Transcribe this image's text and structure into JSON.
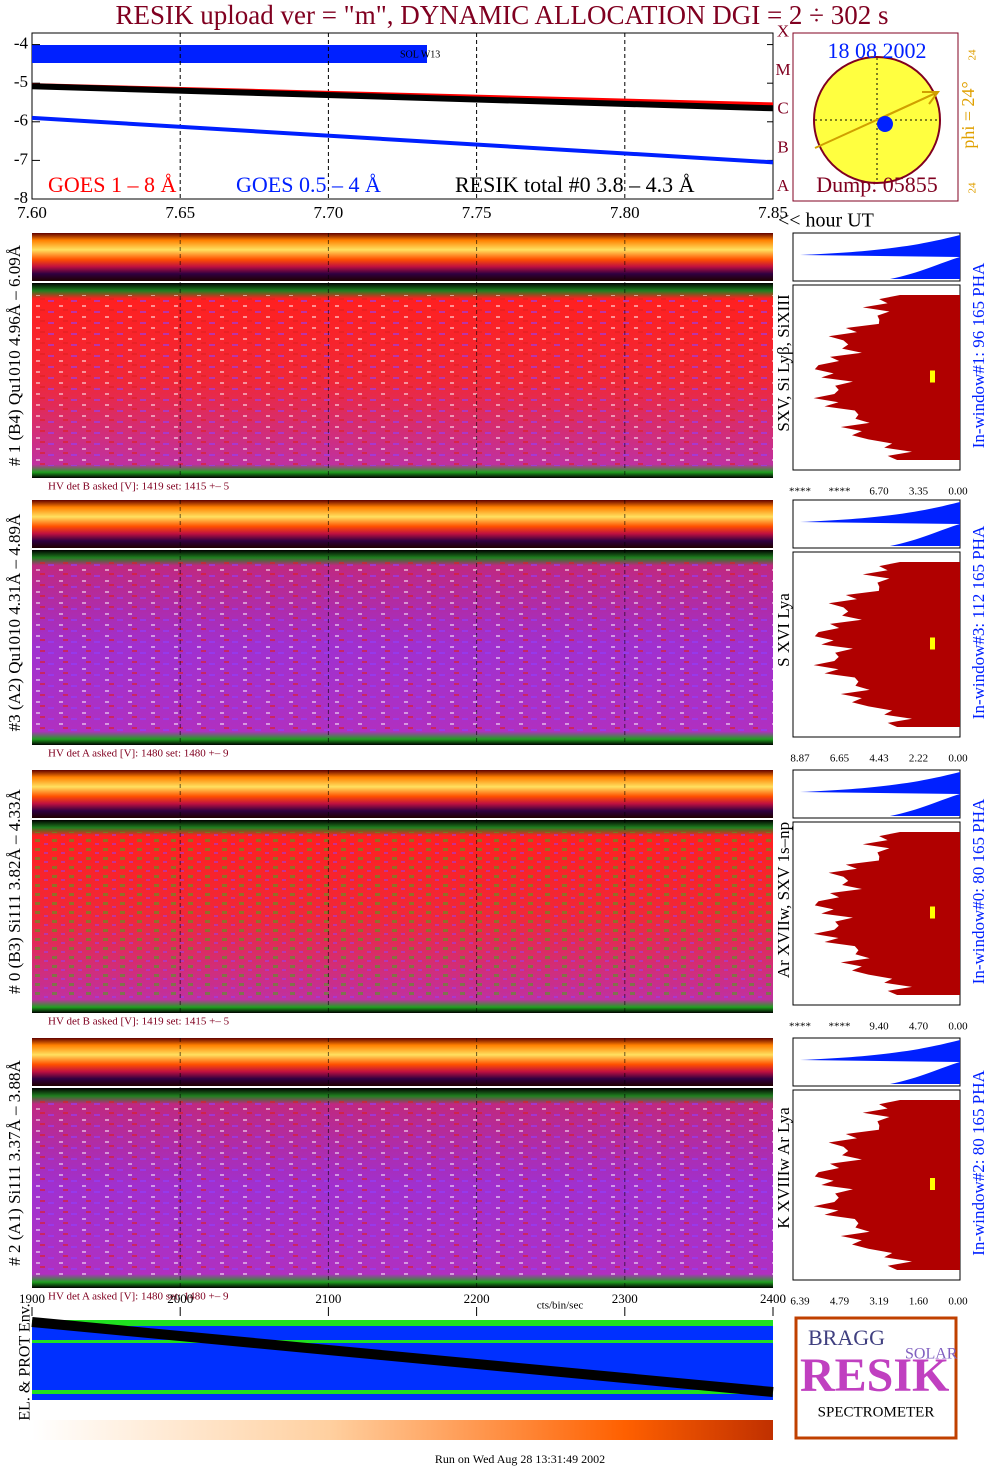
{
  "title": "RESIK upload ver = \"m\", DYNAMIC ALLOCATION  DGI =   2 ÷ 302 s",
  "chart_data": {
    "type": "line",
    "x": [
      7.6,
      7.85
    ],
    "xlim": [
      7.6,
      7.85
    ],
    "xticks": [
      {
        "value": 7.6,
        "label": "7.60"
      },
      7.65,
      {
        "value": 7.7,
        "label": "7.70"
      },
      7.75,
      {
        "value": 7.8,
        "label": "7.80"
      },
      7.85
    ],
    "x_label": "<< hour UT",
    "ylim": [
      -8,
      -3.7
    ],
    "yticks": [
      -4,
      -5,
      -6,
      -7,
      -8
    ],
    "class_ticks": [
      {
        "value": -8,
        "label": "A"
      },
      {
        "value": -7,
        "label": "B"
      },
      {
        "value": -6,
        "label": "C"
      },
      {
        "value": -5,
        "label": "M"
      },
      {
        "value": -4,
        "label": "X"
      }
    ],
    "grid": true,
    "annotation": "SOL W13",
    "series": [
      {
        "name": "GOES 1 – 8 Å",
        "color": "#ff0000",
        "values": [
          -5.05,
          -5.55
        ]
      },
      {
        "name": "GOES 0.5 – 4 Å",
        "color": "#0020ff",
        "values": [
          -5.9,
          -7.05
        ]
      },
      {
        "name": "RESIK total #0  3.8 – 4.3 Å",
        "color": "#000000",
        "values": [
          -5.08,
          -5.65
        ]
      }
    ]
  },
  "sun": {
    "date": "18 08 2002",
    "phi": "phi = 24°",
    "corner_top": "24",
    "corner_bottom": "24",
    "dump": "Dump: 05855"
  },
  "panels": [
    {
      "detector": "# 1 (B4) Qu1010 4.96Å – 6.09Å",
      "lines": "SXV, Si Lyβ, SiXIII",
      "window": "In-window#1:   96 165  PHA",
      "hv": "HV det B asked [V]:  1419 set:  1415 +–    5",
      "pha_ticks": [
        "****",
        "****",
        "6.70",
        "3.35",
        "0.00"
      ]
    },
    {
      "detector": "#3 (A2) Qu1010  4.31Å – 4.89Å",
      "lines": "S XVI Lya",
      "window": "In-window#3:  112 165  PHA",
      "hv": "HV det A asked [V]:  1480 set:  1480 +–    9",
      "pha_ticks": [
        "8.87",
        "6.65",
        "4.43",
        "2.22",
        "0.00"
      ]
    },
    {
      "detector": "# 0 (B3) Si111  3.82Å – 4.33Å",
      "lines": "Ar XVIIw, SXV 1s–np",
      "window": "In-window#0:   80 165  PHA",
      "hv": "HV det B asked [V]:  1419 set:  1415 +–    5",
      "pha_ticks": [
        "****",
        "****",
        "9.40",
        "4.70",
        "0.00"
      ]
    },
    {
      "detector": "# 2 (A1) Si111  3.37Å – 3.88Å",
      "lines": "K XVIIIw  Ar Lya",
      "window": "In-window#2:   80 165  PHA",
      "hv": "HV det A asked [V]:  1480 set:  1480 +–    9",
      "pha_ticks": [
        "6.39",
        "4.79",
        "3.19",
        "1.60",
        "0.00"
      ]
    }
  ],
  "pha_unit": "cts/bin/sec",
  "time_axis": {
    "xlim": [
      1900,
      2400
    ],
    "xticks": [
      1900,
      2000,
      2100,
      2200,
      2300,
      2400
    ]
  },
  "env_label": "EL. & PROT Env.",
  "logo": {
    "bragg": "BRAGG",
    "resik": "RESIK",
    "solar": "SOLAR",
    "spectrometer": "SPECTROMETER"
  },
  "footer": "Run on Wed Aug 28 13:31:49 2002"
}
